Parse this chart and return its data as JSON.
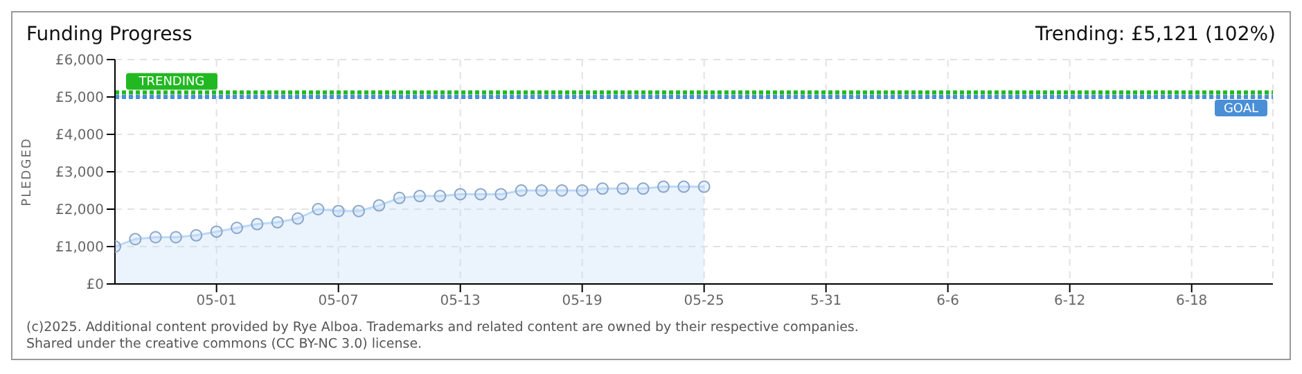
{
  "chart_data": {
    "type": "area",
    "title": "Funding Progress",
    "subtitle": "Trending:  £5,121 (102%)",
    "ylabel": "PLEDGED",
    "x": [
      "--04-26",
      "--04-27",
      "--04-28",
      "--04-29",
      "--04-30",
      "--05-01",
      "--05-02",
      "--05-03",
      "--05-04",
      "--05-05",
      "--05-06",
      "--05-07",
      "--05-08",
      "--05-09",
      "--05-10",
      "--05-11",
      "--05-12",
      "--05-13",
      "--05-14",
      "--05-15",
      "--05-16",
      "--05-17",
      "--05-18",
      "--05-19",
      "--05-20",
      "--05-21",
      "--05-22",
      "--05-23",
      "--05-24",
      "--05-25"
    ],
    "series": [
      {
        "color": "#bcd8f7",
        "values": [
          1000,
          1200,
          1250,
          1250,
          1300,
          1400,
          1500,
          1600,
          1650,
          1750,
          2000,
          1950,
          1950,
          2100,
          2300,
          2350,
          2350,
          2400,
          2400,
          2400,
          2500,
          2500,
          2500,
          2500,
          2550,
          2550,
          2550,
          2600,
          2600,
          2600
        ]
      }
    ],
    "xlim": [
      "--04-26",
      "--06-22"
    ],
    "xticks": [
      {
        "value": "--05-01",
        "label": "05-01"
      },
      {
        "value": "--05-07",
        "label": "05-07"
      },
      {
        "value": "--05-13",
        "label": "05-13"
      },
      {
        "value": "--05-19",
        "label": "05-19"
      },
      {
        "value": "--05-25",
        "label": "05-25"
      },
      {
        "value": "--05-31",
        "label": "5-31"
      },
      {
        "value": "--06-06",
        "label": "6-6"
      },
      {
        "value": "--06-12",
        "label": "6-12"
      },
      {
        "value": "--06-18",
        "label": "6-18"
      }
    ],
    "ylim": [
      0,
      6000
    ],
    "yticks": [
      {
        "value": 0,
        "label": "£0"
      },
      {
        "value": 1000,
        "label": "£1,000"
      },
      {
        "value": 2000,
        "label": "£2,000"
      },
      {
        "value": 3000,
        "label": "£3,000"
      },
      {
        "value": 4000,
        "label": "£4,000"
      },
      {
        "value": 5000,
        "label": "£5,000"
      },
      {
        "value": 6000,
        "label": "£6,000"
      }
    ],
    "ref_lines": [
      {
        "axis": "y",
        "value": 5121,
        "label": "TRENDING",
        "color": "#22b822",
        "line_style": "dotted"
      },
      {
        "axis": "y",
        "value": 5000,
        "label": "GOAL",
        "color": "#4a8fd6",
        "line_style": "dotted"
      }
    ],
    "grid": true,
    "marker": "circle",
    "legend": false,
    "annotations": [
      "(c)2025. Additional content provided by Rye Alboa. Trademarks and related content are owned by their respective companies.",
      "Shared under the creative commons (CC BY-NC 3.0) license."
    ]
  }
}
